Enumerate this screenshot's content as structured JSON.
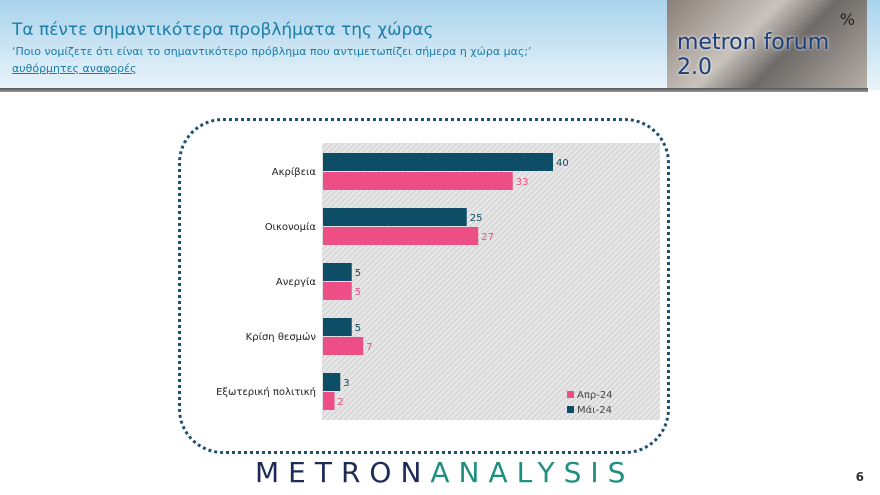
{
  "header": {
    "title": "Τα πέντε σημαντικότερα προβλήματα της χώρας",
    "subtitle": "‘Ποιο νομίζετε ότι είναι το σημαντικότερο πρόβλημα που αντιμετωπίζει σήμερα η χώρα μας;’",
    "note": "αυθόρμητες αναφορές"
  },
  "logo": {
    "name": "metron forum 2.0",
    "symbol": "%"
  },
  "brand": {
    "left": "METRON",
    "right": "ANALYSIS"
  },
  "page_number": "6",
  "chart_data": {
    "type": "bar",
    "orientation": "horizontal",
    "categories": [
      "Ακρίβεια",
      "Οικονομία",
      "Ανεργία",
      "Κρίση θεσμών",
      "Εξωτερική πολιτική"
    ],
    "series": [
      {
        "name": "Μάι-24",
        "color": "#0e4d66",
        "values": [
          40,
          25,
          5,
          5,
          3
        ]
      },
      {
        "name": "Απρ-24",
        "color": "#ee4e86",
        "values": [
          33,
          27,
          5,
          7,
          2
        ]
      }
    ],
    "legend_order": [
      "Απρ-24",
      "Μάι-24"
    ],
    "legend": "bottom-right",
    "xlim": [
      0,
      58
    ],
    "grid": false
  }
}
